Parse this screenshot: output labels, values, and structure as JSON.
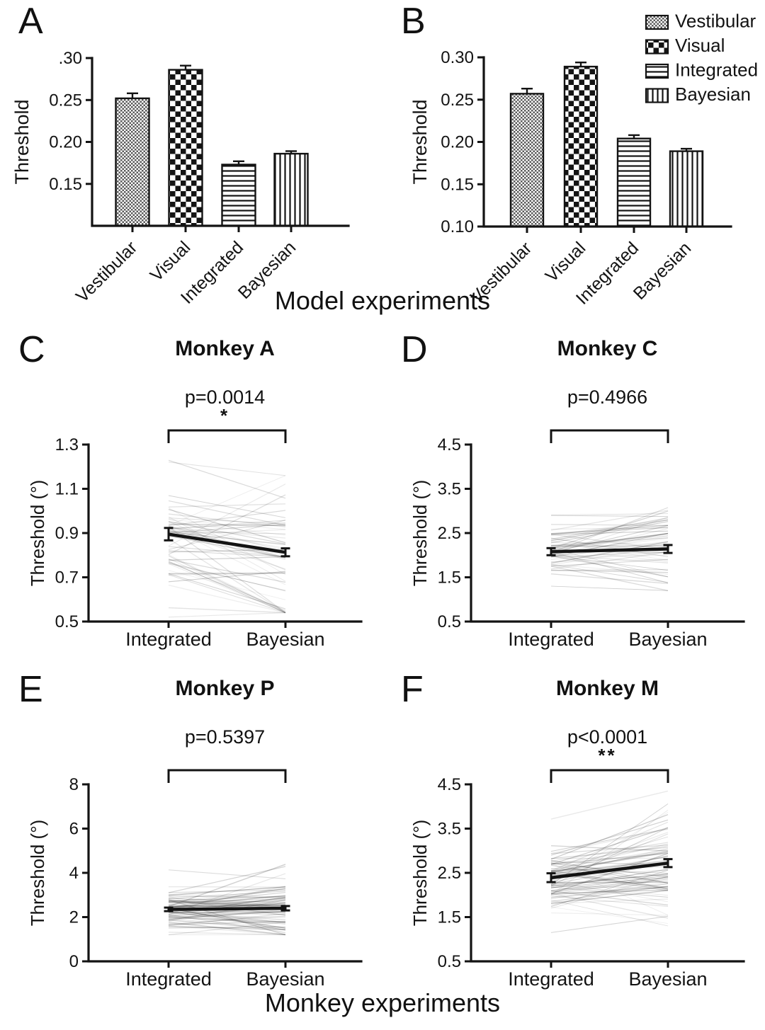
{
  "figure": {
    "captions": {
      "model": "Model experiments",
      "monkey": "Monkey experiments"
    }
  },
  "legend": {
    "items": [
      {
        "label": "Vestibular",
        "pattern": "fine-checker"
      },
      {
        "label": "Visual",
        "pattern": "checker"
      },
      {
        "label": "Integrated",
        "pattern": "hlines"
      },
      {
        "label": "Bayesian",
        "pattern": "vlines"
      }
    ]
  },
  "chart_data": [
    {
      "panel": "A",
      "type": "bar",
      "title": "",
      "ylabel": "Threshold",
      "categories": [
        "Vestibular",
        "Visual",
        "Integrated",
        "Bayesian"
      ],
      "patterns": [
        "fine-checker",
        "checker",
        "hlines",
        "vlines"
      ],
      "values": [
        0.252,
        0.286,
        0.173,
        0.186
      ],
      "errors": [
        0.006,
        0.005,
        0.004,
        0.003
      ],
      "ymin": 0.1,
      "ymax": 0.3,
      "tick_values": [
        0.3,
        0.25,
        0.2,
        0.15
      ],
      "tick_labels": [
        ".30",
        "0.25",
        "0.20",
        "0.15"
      ]
    },
    {
      "panel": "B",
      "type": "bar",
      "title": "",
      "ylabel": "Threshold",
      "categories": [
        "Vestibular",
        "Visual",
        "Integrated",
        "Bayesian"
      ],
      "patterns": [
        "fine-checker",
        "checker",
        "hlines",
        "vlines"
      ],
      "values": [
        0.257,
        0.289,
        0.204,
        0.189
      ],
      "errors": [
        0.006,
        0.005,
        0.004,
        0.003
      ],
      "ymin": 0.1,
      "ymax": 0.3,
      "tick_values": [
        0.3,
        0.25,
        0.2,
        0.15,
        0.1
      ],
      "tick_labels": [
        "0.30",
        "0.25",
        "0.20",
        "0.15",
        "0.10"
      ],
      "has_legend": true
    },
    {
      "panel": "C",
      "type": "paired-line",
      "title": "Monkey A",
      "p_label": "p=0.0014",
      "stars": "*",
      "ylabel": "Threshold (°)",
      "categories": [
        "Integrated",
        "Bayesian"
      ],
      "tick_values": [
        1.3,
        1.1,
        0.9,
        0.7,
        0.5
      ],
      "means": [
        0.895,
        0.813
      ],
      "sems": [
        0.028,
        0.018
      ],
      "spaghetti": {
        "count": 62,
        "seed": 11,
        "spread": 0.21,
        "delta": 0.27,
        "integrated_range": [
          0.52,
          1.26
        ],
        "bayesian_range": [
          0.54,
          1.16
        ]
      }
    },
    {
      "panel": "D",
      "type": "paired-line",
      "title": "Monkey C",
      "p_label": "p=0.4966",
      "stars": "",
      "ylabel": "Threshold (°)",
      "categories": [
        "Integrated",
        "Bayesian"
      ],
      "tick_values": [
        4.5,
        3.5,
        2.5,
        1.5,
        0.5
      ],
      "means": [
        2.08,
        2.14
      ],
      "sems": [
        0.08,
        0.09
      ],
      "spaghetti": {
        "count": 60,
        "seed": 23,
        "spread": 0.6,
        "delta": 0.75,
        "integrated_range": [
          1.3,
          3.6
        ],
        "bayesian_range": [
          1.2,
          3.95
        ]
      }
    },
    {
      "panel": "E",
      "type": "paired-line",
      "title": "Monkey P",
      "p_label": "p=0.5397",
      "stars": "",
      "ylabel": "Threshold (°)",
      "categories": [
        "Integrated",
        "Bayesian"
      ],
      "tick_values": [
        8,
        6,
        4,
        2,
        0
      ],
      "means": [
        2.35,
        2.4
      ],
      "sems": [
        0.08,
        0.1
      ],
      "spaghetti": {
        "count": 85,
        "seed": 37,
        "spread": 0.95,
        "delta": 1.15,
        "integrated_range": [
          1.2,
          5.1
        ],
        "bayesian_range": [
          1.2,
          6.3
        ]
      }
    },
    {
      "panel": "F",
      "type": "paired-line",
      "title": "Monkey M",
      "p_label": "p<0.0001",
      "stars": "**",
      "ylabel": "Threshold (°)",
      "categories": [
        "Integrated",
        "Bayesian"
      ],
      "tick_values": [
        4.5,
        3.5,
        2.5,
        1.5,
        0.5
      ],
      "means": [
        2.39,
        2.72
      ],
      "sems": [
        0.1,
        0.09
      ],
      "spaghetti": {
        "count": 85,
        "seed": 53,
        "spread": 0.85,
        "delta": 1.0,
        "integrated_range": [
          1.15,
          4.3
        ],
        "bayesian_range": [
          1.3,
          4.35
        ]
      }
    }
  ]
}
